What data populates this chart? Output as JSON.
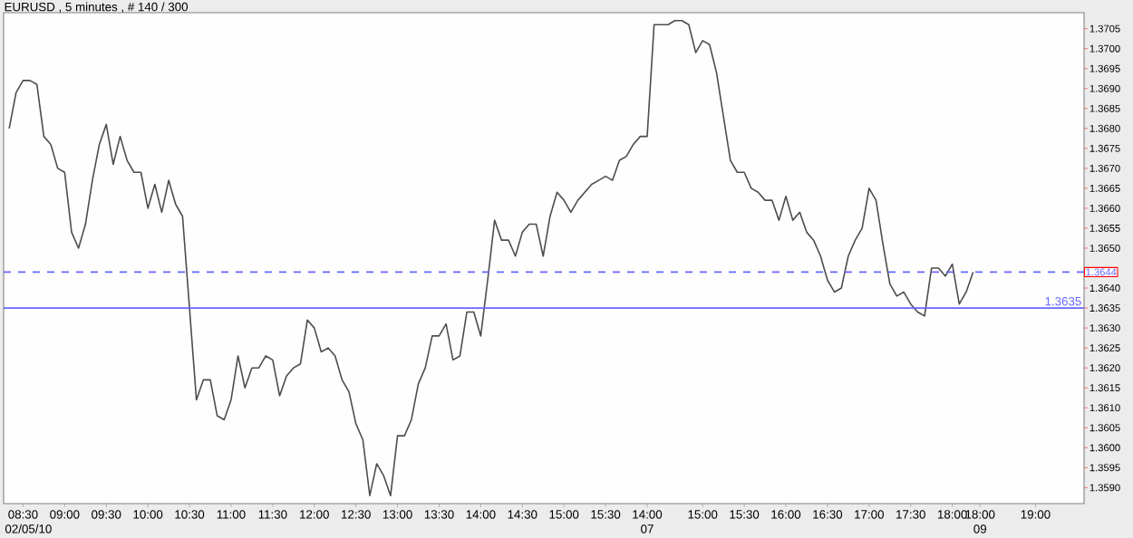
{
  "chart_data": {
    "type": "line",
    "title": "EURUSD , 5 minutes , # 140 / 300",
    "categories": [
      null,
      null,
      "08:30 02/05/10",
      null,
      null,
      null,
      null,
      null,
      "09:00",
      null,
      null,
      null,
      null,
      null,
      "09:30",
      null,
      null,
      null,
      null,
      null,
      "10:00",
      null,
      null,
      null,
      null,
      null,
      "10:30",
      null,
      null,
      null,
      null,
      null,
      "11:00",
      null,
      null,
      null,
      null,
      null,
      "11:30",
      null,
      null,
      null,
      null,
      null,
      "12:00",
      null,
      null,
      null,
      null,
      null,
      "12:30",
      null,
      null,
      null,
      null,
      null,
      "13:00",
      null,
      null,
      null,
      null,
      null,
      "13:30",
      null,
      null,
      null,
      null,
      null,
      "14:00",
      null,
      null,
      null,
      null,
      null,
      "14:30",
      null,
      null,
      null,
      null,
      null,
      "15:00",
      null,
      null,
      null,
      null,
      null,
      "15:30",
      null,
      null,
      null,
      null,
      null,
      "14:00 07",
      null,
      null,
      null,
      null,
      null,
      null,
      null,
      "15:00",
      null,
      null,
      null,
      null,
      null,
      "15:30",
      null,
      null,
      null,
      null,
      null,
      "16:00",
      null,
      null,
      null,
      null,
      null,
      "16:30",
      null,
      null,
      null,
      null,
      null,
      "17:00",
      null,
      null,
      null,
      null,
      null,
      "17:30",
      null,
      null,
      null,
      null,
      null,
      "18:00",
      null,
      null,
      null,
      "18:00 09",
      null,
      null,
      null,
      null,
      null,
      null,
      null,
      "19:00",
      null,
      null,
      null,
      null,
      null,
      null,
      null
    ],
    "values": [
      1.368,
      1.3689,
      1.3692,
      1.3692,
      1.3691,
      1.3678,
      1.3676,
      1.367,
      1.3669,
      1.3654,
      1.365,
      1.3656,
      1.3667,
      1.3676,
      1.3681,
      1.3671,
      1.3678,
      1.3672,
      1.3669,
      1.3669,
      1.366,
      1.3666,
      1.3659,
      1.3667,
      1.3661,
      1.3658,
      1.3635,
      1.3612,
      1.3617,
      1.3617,
      1.3608,
      1.3607,
      1.3612,
      1.3623,
      1.3615,
      1.362,
      1.362,
      1.3623,
      1.3622,
      1.3613,
      1.3618,
      1.362,
      1.3621,
      1.3632,
      1.363,
      1.3624,
      1.3625,
      1.3623,
      1.3617,
      1.3614,
      1.3606,
      1.3602,
      1.3588,
      1.3596,
      1.3593,
      1.3588,
      1.3603,
      1.3603,
      1.3607,
      1.3616,
      1.362,
      1.3628,
      1.3628,
      1.3631,
      1.3622,
      1.3623,
      1.3634,
      1.3634,
      1.3628,
      1.3642,
      1.3657,
      1.3652,
      1.3652,
      1.3648,
      1.3654,
      1.3656,
      1.3656,
      1.3648,
      1.3658,
      1.3664,
      1.3662,
      1.3659,
      1.3662,
      1.3664,
      1.3666,
      1.3667,
      1.3668,
      1.3667,
      1.3672,
      1.3673,
      1.3676,
      1.3678,
      1.3678,
      1.3706,
      1.3706,
      1.3706,
      1.3707,
      1.3707,
      1.3706,
      1.3699,
      1.3702,
      1.3701,
      1.3694,
      1.3683,
      1.3672,
      1.3669,
      1.3669,
      1.3665,
      1.3664,
      1.3662,
      1.3662,
      1.3657,
      1.3663,
      1.3657,
      1.3659,
      1.3654,
      1.3652,
      1.3648,
      1.3642,
      1.3639,
      1.364,
      1.3648,
      1.3652,
      1.3655,
      1.3665,
      1.3662,
      1.3651,
      1.3641,
      1.3638,
      1.3639,
      1.3636,
      1.3634,
      1.3633,
      1.3645,
      1.3645,
      1.3643,
      1.3646,
      1.3636,
      1.3639,
      1.3644,
      null,
      null,
      null,
      null,
      null,
      null,
      null,
      null,
      null,
      null,
      null,
      null,
      null,
      null,
      null,
      null
    ],
    "color": "#4d4d4d",
    "ylim": [
      1.3586,
      1.3709
    ],
    "yticks": [
      {
        "value": 1.359,
        "label": "1.3590"
      },
      {
        "value": 1.3595,
        "label": "1.3595"
      },
      {
        "value": 1.36,
        "label": "1.3600"
      },
      {
        "value": 1.3605,
        "label": "1.3605"
      },
      {
        "value": 1.361,
        "label": "1.3610"
      },
      {
        "value": 1.3615,
        "label": "1.3615"
      },
      {
        "value": 1.362,
        "label": "1.3620"
      },
      {
        "value": 1.3625,
        "label": "1.3625"
      },
      {
        "value": 1.363,
        "label": "1.3630"
      },
      {
        "value": 1.3635,
        "label": "1.3635"
      },
      {
        "value": 1.364,
        "label": "1.3640"
      },
      {
        "value": 1.365,
        "label": "1.3650"
      },
      {
        "value": 1.3655,
        "label": "1.3655"
      },
      {
        "value": 1.366,
        "label": "1.3660"
      },
      {
        "value": 1.3665,
        "label": "1.3665"
      },
      {
        "value": 1.367,
        "label": "1.3670"
      },
      {
        "value": 1.3675,
        "label": "1.3675"
      },
      {
        "value": 1.368,
        "label": "1.3680"
      },
      {
        "value": 1.3685,
        "label": "1.3685"
      },
      {
        "value": 1.369,
        "label": "1.3690"
      },
      {
        "value": 1.3695,
        "label": "1.3695"
      },
      {
        "value": 1.37,
        "label": "1.3700"
      },
      {
        "value": 1.3705,
        "label": "1.3705"
      }
    ],
    "ref_lines": [
      {
        "axis": "y",
        "value": 1.3644,
        "label": "1.3644",
        "color": "#6666ff",
        "line_style": "dashed"
      },
      {
        "axis": "y",
        "value": 1.3635,
        "label": "1.3635",
        "color": "#6666ff",
        "line_style": "solid"
      }
    ]
  }
}
